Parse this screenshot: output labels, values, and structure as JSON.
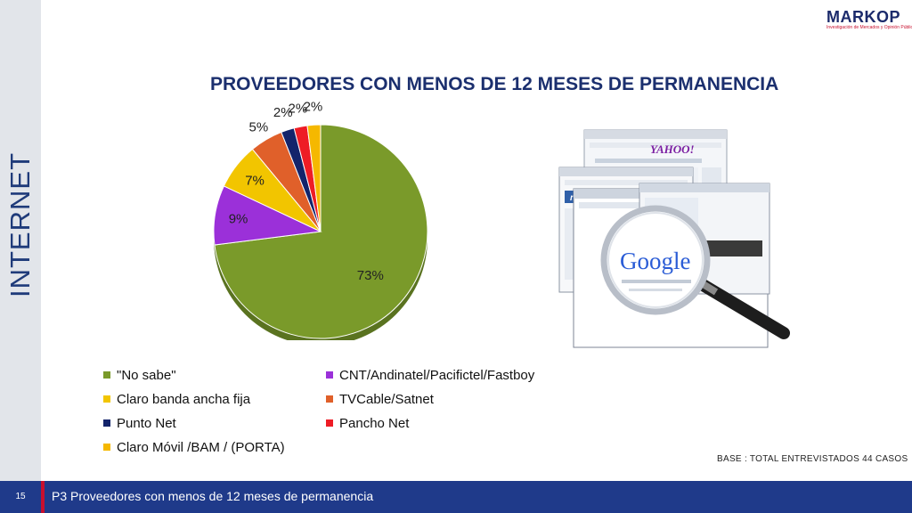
{
  "sidebar": {
    "title": "INTERNET"
  },
  "logo": {
    "name": "MARKOP",
    "tagline": "Investigación de Mercados y Opinión Pública"
  },
  "chart_data": {
    "type": "pie",
    "title": "PROVEEDORES CON MENOS DE 12 MESES DE PERMANENCIA",
    "slices": [
      {
        "label": "\"No sabe\"",
        "value": 73,
        "display": "73%",
        "color": "#7a9a2a"
      },
      {
        "label": "CNT/Andinatel/Pacifictel/Fastboy",
        "value": 9,
        "display": "9%",
        "color": "#9b30d9"
      },
      {
        "label": "Claro banda ancha fija",
        "value": 7,
        "display": "7%",
        "color": "#f2c500"
      },
      {
        "label": "TVCable/Satnet",
        "value": 5,
        "display": "5%",
        "color": "#e0602a"
      },
      {
        "label": "Punto Net",
        "value": 2,
        "display": "2%",
        "color": "#13246b"
      },
      {
        "label": "Pancho Net",
        "value": 2,
        "display": "2%",
        "color": "#ee1c25"
      },
      {
        "label": "Claro Móvil /BAM / (PORTA)",
        "value": 2,
        "display": "2%",
        "color": "#f5b800"
      }
    ],
    "legend_position": "bottom"
  },
  "base_note": "BASE   : TOTAL ENTREVISTADOS 44 CASOS",
  "footer": {
    "page": "15",
    "text": "P3 Proveedores con menos de 12 meses de permanencia"
  },
  "illustration": {
    "search_logo": "Google",
    "portal_logo": "YAHOO!",
    "portal2_logo": "msn",
    "icon": "magnifying-glass-icon"
  }
}
